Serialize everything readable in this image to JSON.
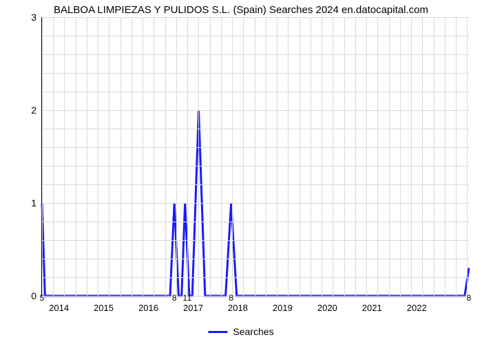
{
  "title": "BALBOA LIMPIEZAS Y PULIDOS S.L. (Spain) Searches 2024 en.datocapital.com",
  "chart": {
    "type": "line",
    "line_color": "#1a1aff",
    "line_width": 3,
    "background_color": "#ffffff",
    "grid_color": "#d9d9d9",
    "axis_color": "#000000",
    "title_fontsize": 15,
    "label_fontsize": 13,
    "ylim": [
      0,
      3
    ],
    "yticks": [
      0,
      1,
      2,
      3
    ],
    "ygrid_minor_step": 0.2,
    "x_major_ticks": [
      0.0397,
      0.1444,
      0.2492,
      0.354,
      0.4587,
      0.5635,
      0.6683,
      0.773,
      0.8778,
      0.9825
    ],
    "x_major_labels": [
      "2014",
      "2015",
      "2016",
      "2017",
      "2018",
      "2019",
      "2020",
      "2021",
      "2022",
      ""
    ],
    "xgrid_minor_step": 0.0262,
    "series": {
      "name": "Searches",
      "points": [
        {
          "x": 0.0,
          "y": 1.0,
          "label": "5"
        },
        {
          "x": 0.007,
          "y": 0.0
        },
        {
          "x": 0.3,
          "y": 0.0
        },
        {
          "x": 0.31,
          "y": 1.0,
          "label": "8"
        },
        {
          "x": 0.32,
          "y": 0.0
        },
        {
          "x": 0.327,
          "y": 0.0
        },
        {
          "x": 0.335,
          "y": 1.0,
          "label": "1"
        },
        {
          "x": 0.345,
          "y": 0.0,
          "label": "1"
        },
        {
          "x": 0.352,
          "y": 0.0
        },
        {
          "x": 0.367,
          "y": 2.0
        },
        {
          "x": 0.382,
          "y": 0.0
        },
        {
          "x": 0.43,
          "y": 0.0
        },
        {
          "x": 0.443,
          "y": 1.0,
          "label": "8"
        },
        {
          "x": 0.456,
          "y": 0.0
        },
        {
          "x": 0.99,
          "y": 0.0
        },
        {
          "x": 1.0,
          "y": 0.3,
          "label": "8"
        }
      ]
    },
    "legend": {
      "label": "Searches"
    }
  }
}
